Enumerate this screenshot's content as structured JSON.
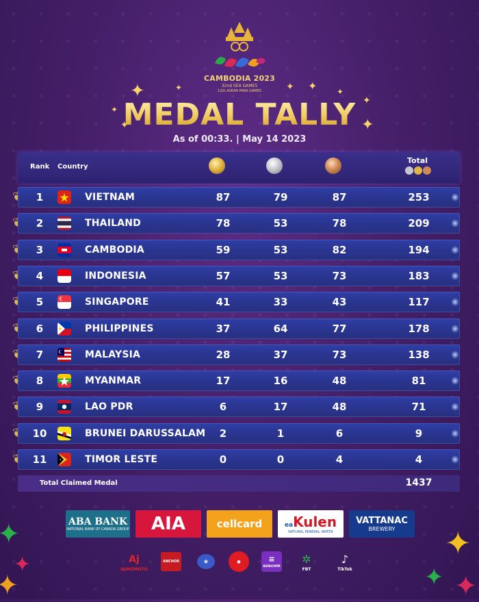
{
  "event": {
    "line1": "CAMBODIA 2023",
    "line2": "32nd SEA GAMES",
    "line3": "12th ASEAN PARA GAMES"
  },
  "title": "MEDAL TALLY",
  "subtitle": "As of 00:33. | May 14 2023",
  "columns": {
    "rank": "Rank",
    "country": "Country",
    "total": "Total"
  },
  "rows": [
    {
      "rank": "1",
      "country": "VIETNAM",
      "gold": "87",
      "silver": "79",
      "bronze": "87",
      "total": "253",
      "flag": "vietnam"
    },
    {
      "rank": "2",
      "country": "THAILAND",
      "gold": "78",
      "silver": "53",
      "bronze": "78",
      "total": "209",
      "flag": "thailand"
    },
    {
      "rank": "3",
      "country": "CAMBODIA",
      "gold": "59",
      "silver": "53",
      "bronze": "82",
      "total": "194",
      "flag": "cambodia"
    },
    {
      "rank": "4",
      "country": "INDONESIA",
      "gold": "57",
      "silver": "53",
      "bronze": "73",
      "total": "183",
      "flag": "indonesia"
    },
    {
      "rank": "5",
      "country": "SINGAPORE",
      "gold": "41",
      "silver": "33",
      "bronze": "43",
      "total": "117",
      "flag": "singapore"
    },
    {
      "rank": "6",
      "country": "PHILIPPINES",
      "gold": "37",
      "silver": "64",
      "bronze": "77",
      "total": "178",
      "flag": "philippines"
    },
    {
      "rank": "7",
      "country": "MALAYSIA",
      "gold": "28",
      "silver": "37",
      "bronze": "73",
      "total": "138",
      "flag": "malaysia"
    },
    {
      "rank": "8",
      "country": "MYANMAR",
      "gold": "17",
      "silver": "16",
      "bronze": "48",
      "total": "81",
      "flag": "myanmar"
    },
    {
      "rank": "9",
      "country": "LAO PDR",
      "gold": "6",
      "silver": "17",
      "bronze": "48",
      "total": "71",
      "flag": "laos"
    },
    {
      "rank": "10",
      "country": "BRUNEI DARUSSALAM",
      "gold": "2",
      "silver": "1",
      "bronze": "6",
      "total": "9",
      "flag": "brunei"
    },
    {
      "rank": "11",
      "country": "TIMOR LESTE",
      "gold": "0",
      "silver": "0",
      "bronze": "4",
      "total": "4",
      "flag": "timor-leste"
    }
  ],
  "footer": {
    "label": "Total Claimed Medal",
    "value": "1437"
  },
  "sponsors": {
    "aba": "ABA BANK",
    "aba_sub": "NATIONAL BANK OF CANADA GROUP",
    "aia": "AIA",
    "cellcard": "cellcard",
    "kulen_brand": "Kulen",
    "kulen_prefix": "ea",
    "kulen_sub": "NATURAL MINERAL WATER",
    "vattanac": "VATTANAC",
    "vattanac_sub": "BREWERY"
  },
  "partners": [
    "AJINOMOTO",
    "ANCHOR",
    "",
    "",
    "ezecom",
    "FBT",
    "TikTok"
  ],
  "colors": {
    "gold": "#f0c95c",
    "row_blue": "#2a3590",
    "header_purple": "#2d2270",
    "background": "#46206a"
  }
}
